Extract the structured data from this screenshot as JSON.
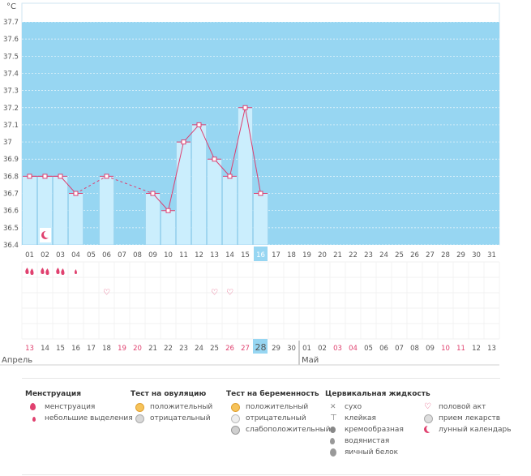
{
  "chart_data": {
    "type": "line",
    "title": "",
    "unit_label": "°C",
    "ylim": [
      36.4,
      37.7
    ],
    "y_ticks": [
      "36.4",
      "36.5",
      "36.6",
      "36.7",
      "36.8",
      "36.9",
      "37",
      "37.1",
      "37.2",
      "37.3",
      "37.4",
      "37.5",
      "37.6",
      "37.7"
    ],
    "cycle_days": [
      "01",
      "02",
      "03",
      "04",
      "05",
      "06",
      "07",
      "08",
      "09",
      "10",
      "11",
      "12",
      "13",
      "14",
      "15",
      "16",
      "17",
      "18",
      "19",
      "20",
      "21",
      "22",
      "23",
      "24",
      "25",
      "26",
      "27",
      "28",
      "29",
      "30",
      "31"
    ],
    "current_day_index": 15,
    "temperatures": [
      36.8,
      36.8,
      36.8,
      36.7,
      null,
      36.8,
      null,
      null,
      36.7,
      36.6,
      37.0,
      37.1,
      36.9,
      36.8,
      37.2,
      36.7,
      null,
      null,
      null,
      null,
      null,
      null,
      null,
      null,
      null,
      null,
      null,
      null,
      null,
      null,
      null
    ],
    "extrapolated_segments": [
      [
        3,
        5
      ],
      [
        5,
        8
      ]
    ],
    "menstruation": [
      {
        "day_index": 0,
        "kind": "heavy"
      },
      {
        "day_index": 1,
        "kind": "heavy"
      },
      {
        "day_index": 2,
        "kind": "heavy"
      },
      {
        "day_index": 3,
        "kind": "light"
      }
    ],
    "intercourse_days": [
      5,
      12,
      13
    ],
    "moon_days": [
      1
    ],
    "calendar_dates": [
      "13",
      "14",
      "15",
      "16",
      "17",
      "18",
      "19",
      "20",
      "21",
      "22",
      "23",
      "24",
      "25",
      "26",
      "27",
      "28",
      "29",
      "30",
      "01",
      "02",
      "03",
      "04",
      "05",
      "06",
      "07",
      "08",
      "09",
      "10",
      "11",
      "12",
      "13"
    ],
    "weekend_indices": [
      0,
      6,
      7,
      13,
      14,
      20,
      21,
      27,
      28
    ],
    "today_index": 15,
    "months": [
      {
        "label": "Апрель",
        "start_index": 0
      },
      {
        "label": "Май",
        "start_index": 18
      }
    ]
  },
  "colors": {
    "sky": "#97d6f2",
    "bar": "#cbeefd",
    "bar_edge": "#8ec9e8",
    "line": "#dd3f70",
    "weekend": "#e0416f",
    "today": "#97d6f2"
  },
  "legend": {
    "menstruation": {
      "title": "Менструация",
      "items": [
        "менструация",
        "небольшие выделения"
      ]
    },
    "ovulation": {
      "title": "Тест на овуляцию",
      "items": [
        "положительный",
        "отрицательный"
      ]
    },
    "pregnancy": {
      "title": "Тест на беременность",
      "items": [
        "положительный",
        "отрицательный",
        "слабоположительный"
      ]
    },
    "cervical": {
      "title": "Цервикальная жидкость",
      "items": [
        "сухо",
        "клейкая",
        "кремообразная",
        "водянистая",
        "яичный белок"
      ]
    },
    "other": {
      "items": [
        "половой акт",
        "прием лекарств",
        "лунный календарь"
      ]
    }
  }
}
